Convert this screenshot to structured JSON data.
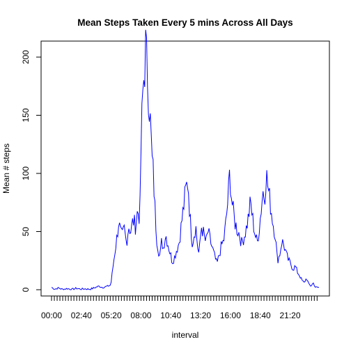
{
  "chart_data": {
    "type": "line",
    "title": "Mean Steps Taken Every 5 mins Across All Days",
    "xlabel": "interval",
    "ylabel": "Mean # steps",
    "ylim": [
      0,
      210
    ],
    "y_ticks": [
      0,
      50,
      100,
      150,
      200
    ],
    "x_tick_labels": [
      "00:00",
      "02:40",
      "05:20",
      "08:00",
      "10:40",
      "13:20",
      "16:00",
      "18:40",
      "21:20"
    ],
    "n_intervals": 288,
    "interval_minutes": 5,
    "grid": false,
    "line_color": "#0000ff",
    "series": [
      {
        "name": "mean steps",
        "anchors_hours": [
          0,
          0.3,
          0.6,
          1.0,
          1.4,
          1.8,
          2.2,
          2.6,
          3.0,
          3.4,
          3.8,
          4.2,
          4.6,
          5.0,
          5.3,
          5.5,
          5.7,
          5.85,
          6.0,
          6.15,
          6.3,
          6.5,
          6.7,
          6.9,
          7.1,
          7.3,
          7.5,
          7.7,
          7.9,
          8.0,
          8.15,
          8.3,
          8.42,
          8.5,
          8.6,
          8.75,
          8.9,
          9.0,
          9.1,
          9.25,
          9.4,
          9.55,
          9.7,
          9.85,
          10.0,
          10.2,
          10.4,
          10.6,
          10.8,
          11.0,
          11.2,
          11.4,
          11.6,
          11.8,
          12.0,
          12.2,
          12.4,
          12.6,
          12.75,
          12.9,
          13.05,
          13.2,
          13.4,
          13.6,
          13.8,
          14.0,
          14.2,
          14.4,
          14.6,
          14.8,
          15.0,
          15.2,
          15.4,
          15.6,
          15.8,
          15.95,
          16.05,
          16.2,
          16.4,
          16.6,
          16.8,
          17.0,
          17.2,
          17.4,
          17.6,
          17.8,
          18.0,
          18.2,
          18.4,
          18.6,
          18.75,
          18.9,
          19.05,
          19.2,
          19.4,
          19.6,
          19.8,
          20.0,
          20.2,
          20.4,
          20.6,
          20.8,
          21.0,
          21.2,
          21.4,
          21.6,
          21.8,
          22.0,
          22.2,
          22.4,
          22.6,
          22.8,
          23.0,
          23.2,
          23.4,
          23.6,
          23.92
        ],
        "anchors_values": [
          2,
          0.5,
          1.5,
          0.3,
          1,
          0.2,
          1.2,
          0.5,
          0.8,
          0.4,
          1.5,
          3,
          2,
          3,
          4,
          20,
          35,
          45,
          58,
          50,
          45,
          52,
          40,
          55,
          50,
          60,
          55,
          68,
          62,
          120,
          165,
          190,
          207,
          195,
          185,
          160,
          130,
          110,
          100,
          70,
          45,
          35,
          28,
          42,
          36,
          48,
          40,
          32,
          24,
          28,
          35,
          40,
          55,
          70,
          85,
          95,
          60,
          40,
          48,
          55,
          38,
          30,
          55,
          48,
          40,
          50,
          42,
          35,
          28,
          22,
          30,
          38,
          42,
          58,
          80,
          102,
          85,
          70,
          58,
          52,
          48,
          40,
          45,
          52,
          62,
          75,
          60,
          48,
          40,
          55,
          70,
          85,
          80,
          100,
          85,
          72,
          58,
          48,
          25,
          30,
          42,
          38,
          30,
          25,
          22,
          18,
          20,
          15,
          12,
          8,
          6,
          10,
          5,
          3,
          6,
          2,
          2
        ]
      }
    ]
  }
}
